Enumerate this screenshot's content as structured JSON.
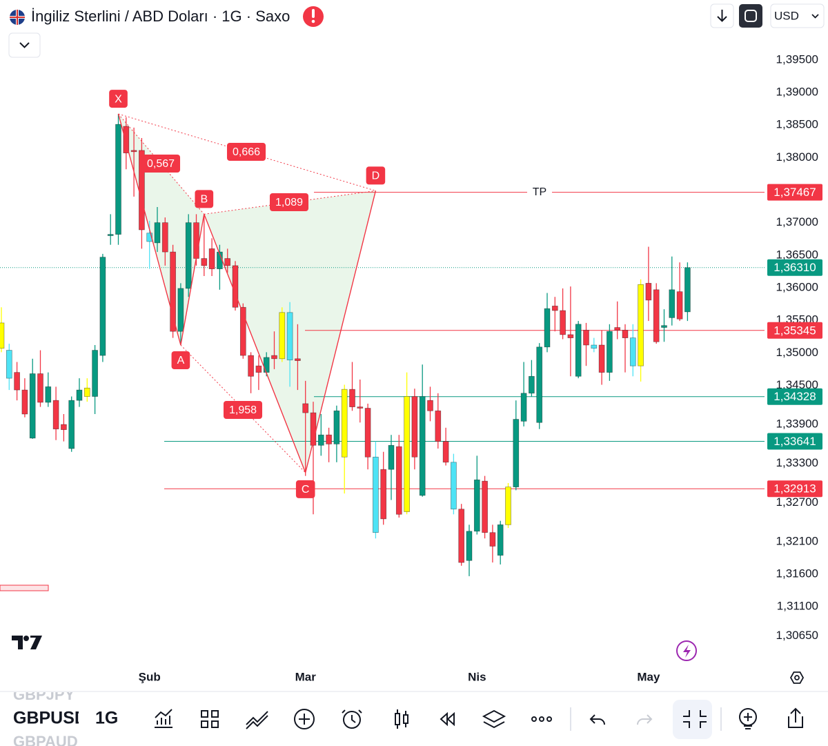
{
  "header": {
    "title": "İngiliz Sterlini / ABD Doları · 1G · Saxo",
    "currency": "USD"
  },
  "toolbar": {
    "symbols": [
      "GBPJPY",
      "GBPUSD",
      "GBPAUD"
    ],
    "interval": "1G"
  },
  "chart_data": {
    "type": "candlestick",
    "categories": [
      null,
      null,
      null,
      null,
      null,
      null,
      null,
      null,
      null,
      null,
      null,
      null,
      null,
      null,
      null,
      null,
      null,
      null,
      null,
      "Şub",
      null,
      null,
      null,
      null,
      null,
      null,
      null,
      null,
      null,
      null,
      null,
      null,
      null,
      null,
      null,
      null,
      null,
      null,
      null,
      "Mar",
      null,
      null,
      null,
      null,
      null,
      null,
      null,
      null,
      null,
      null,
      null,
      null,
      null,
      null,
      null,
      null,
      null,
      null,
      null,
      null,
      null,
      "Nis",
      null,
      null,
      null,
      null,
      null,
      null,
      null,
      null,
      null,
      null,
      null,
      null,
      null,
      null,
      null,
      null,
      null,
      null,
      null,
      null,
      null,
      "May",
      null,
      null,
      null,
      null,
      null
    ],
    "open": [
      1.3507,
      1.3504,
      1.347,
      1.3443,
      1.3369,
      1.3468,
      1.3424,
      1.3427,
      1.339,
      1.3353,
      1.3427,
      1.3433,
      1.3433,
      1.3496,
      1.368,
      1.3682,
      1.3848,
      1.3811,
      1.3811,
      1.3684,
      1.3669,
      1.37,
      1.3655,
      1.3533,
      1.3599,
      1.37,
      1.3645,
      1.366,
      1.3629,
      1.3645,
      1.3634,
      1.357,
      1.3496,
      1.348,
      1.347,
      1.3496,
      1.3491,
      1.3562,
      1.3491,
      1.3422,
      1.3408,
      1.3358,
      1.3374,
      1.336,
      1.334,
      1.3444,
      1.3417,
      1.3415,
      1.334,
      1.3321,
      1.3321,
      1.3356,
      1.3256,
      1.3433,
      1.3281,
      1.3427,
      1.3411,
      1.3364,
      1.3332,
      1.326,
      1.3181,
      1.3226,
      1.3303,
      1.3224,
      1.3189,
      1.3236,
      1.3294,
      1.3395,
      1.3438,
      1.3393,
      1.3509,
      1.3572,
      1.3565,
      1.3528,
      1.3464,
      1.3535,
      1.3512,
      1.3512,
      1.347,
      1.3539,
      1.3535,
      1.3523,
      1.348,
      1.3607,
      1.3597,
      1.3539,
      1.3554,
      1.3594,
      1.3563
    ],
    "high": [
      1.357,
      1.3514,
      1.3486,
      1.3461,
      1.3491,
      1.3504,
      1.347,
      1.3448,
      1.3406,
      1.3433,
      1.3461,
      1.3461,
      1.3512,
      1.3652,
      1.3713,
      1.3867,
      1.3862,
      1.3846,
      1.383,
      1.3703,
      1.3724,
      1.3708,
      1.3666,
      1.3607,
      1.3713,
      1.3713,
      1.3713,
      1.3676,
      1.3666,
      1.366,
      1.3641,
      1.3576,
      1.3501,
      1.3496,
      1.3501,
      1.3533,
      1.357,
      1.3578,
      1.3544,
      1.3457,
      1.3425,
      1.3406,
      1.3385,
      1.3419,
      1.3451,
      1.3486,
      1.3459,
      1.3422,
      1.3364,
      1.3348,
      1.3374,
      1.3374,
      1.347,
      1.3445,
      1.3482,
      1.3448,
      1.3438,
      1.3385,
      1.3345,
      1.3268,
      1.3236,
      1.3342,
      1.3311,
      1.3236,
      1.3242,
      1.33,
      1.3427,
      1.3486,
      1.3489,
      1.3515,
      1.3592,
      1.3586,
      1.3599,
      1.3602,
      1.3549,
      1.3546,
      1.3523,
      1.3535,
      1.3544,
      1.3579,
      1.3544,
      1.3544,
      1.3613,
      1.3663,
      1.3607,
      1.3567,
      1.3648,
      1.3639,
      1.3639
    ],
    "low": [
      1.3501,
      1.3443,
      1.3427,
      1.3401,
      1.3368,
      1.3417,
      1.3417,
      1.3366,
      1.3364,
      1.3348,
      1.3417,
      1.3425,
      1.3406,
      1.3486,
      1.3666,
      1.3666,
      1.3782,
      1.374,
      1.366,
      1.3629,
      1.3655,
      1.3634,
      1.3523,
      1.3512,
      1.3586,
      1.3634,
      1.3618,
      1.3618,
      1.3597,
      1.3623,
      1.3565,
      1.3491,
      1.3438,
      1.3443,
      1.3464,
      1.3475,
      1.3486,
      1.3448,
      1.3443,
      1.3311,
      1.3252,
      1.3342,
      1.3332,
      1.3332,
      1.3284,
      1.3411,
      1.3393,
      1.3321,
      1.3215,
      1.3236,
      1.3274,
      1.3247,
      1.3252,
      1.3321,
      1.3279,
      1.3395,
      1.3353,
      1.3327,
      1.3252,
      1.3173,
      1.3157,
      1.3221,
      1.3215,
      1.3178,
      1.3175,
      1.3231,
      1.3289,
      1.3387,
      1.3433,
      1.3383,
      1.3501,
      1.3533,
      1.3521,
      1.3464,
      1.3461,
      1.348,
      1.3501,
      1.3451,
      1.3457,
      1.3521,
      1.347,
      1.3464,
      1.3456,
      1.3549,
      1.3514,
      1.3517,
      1.3542,
      1.3549,
      1.3549
    ],
    "close": [
      1.3546,
      1.3461,
      1.3443,
      1.3406,
      1.3468,
      1.3424,
      1.3448,
      1.3383,
      1.3382,
      1.3427,
      1.3443,
      1.3446,
      1.3504,
      1.3647,
      1.3682,
      1.3851,
      1.3807,
      1.3809,
      1.3689,
      1.3671,
      1.37,
      1.3655,
      1.3533,
      1.3599,
      1.37,
      1.3645,
      1.3634,
      1.3629,
      1.3655,
      1.3634,
      1.357,
      1.3496,
      1.3464,
      1.347,
      1.3493,
      1.3491,
      1.3562,
      1.3489,
      1.3488,
      1.3408,
      1.3358,
      1.3374,
      1.336,
      1.3411,
      1.3444,
      1.3417,
      1.3415,
      1.334,
      1.3224,
      1.3245,
      1.3358,
      1.3252,
      1.3433,
      1.334,
      1.3433,
      1.3411,
      1.3364,
      1.3332,
      1.326,
      1.3178,
      1.3226,
      1.3305,
      1.3224,
      1.3203,
      1.3236,
      1.3294,
      1.3398,
      1.3438,
      1.3464,
      1.3509,
      1.3568,
      1.3565,
      1.3528,
      1.3523,
      1.3544,
      1.3512,
      1.3507,
      1.347,
      1.3533,
      1.3535,
      1.3523,
      1.348,
      1.3605,
      1.3581,
      1.3517,
      1.3542,
      1.3597,
      1.3552,
      1.3631
    ],
    "colors": [
      "#ffff00",
      "#4ee3f5",
      "#f23645",
      "#f23645",
      "#089981",
      "#f23645",
      "#089981",
      "#f23645",
      "#f23645",
      "#089981",
      "#089981",
      "#ffff00",
      "#089981",
      "#089981",
      "#089981",
      "#089981",
      "#f23645",
      "#f23645",
      "#f23645",
      "#4ee3f5",
      "#089981",
      "#f23645",
      "#f23645",
      "#089981",
      "#089981",
      "#f23645",
      "#f23645",
      "#f23645",
      "#089981",
      "#f23645",
      "#f23645",
      "#f23645",
      "#f23645",
      "#f23645",
      "#089981",
      "#f23645",
      "#ffff00",
      "#4ee3f5",
      "#f23645",
      "#f23645",
      "#f23645",
      "#089981",
      "#f23645",
      "#089981",
      "#ffff00",
      "#f23645",
      "#f23645",
      "#f23645",
      "#4ee3f5",
      "#f23645",
      "#089981",
      "#f23645",
      "#ffff00",
      "#f23645",
      "#089981",
      "#f23645",
      "#f23645",
      "#f23645",
      "#4ee3f5",
      "#f23645",
      "#089981",
      "#089981",
      "#f23645",
      "#f23645",
      "#089981",
      "#ffff00",
      "#089981",
      "#089981",
      "#089981",
      "#089981",
      "#089981",
      "#f23645",
      "#f23645",
      "#f23645",
      "#089981",
      "#f23645",
      "#4ee3f5",
      "#f23645",
      "#089981",
      "#f23645",
      "#f23645",
      "#4ee3f5",
      "#ffff00",
      "#f23645",
      "#f23645",
      "#089981",
      "#089981",
      "#f23645",
      "#089981"
    ],
    "ylim": [
      1.30244,
      1.4042
    ],
    "yticks": [
      {
        "value": 1.395,
        "label": "1,39500"
      },
      {
        "value": 1.39,
        "label": "1,39000"
      },
      {
        "value": 1.385,
        "label": "1,38500"
      },
      {
        "value": 1.38,
        "label": "1,38000"
      },
      {
        "value": 1.37,
        "label": "1,37000"
      },
      {
        "value": 1.365,
        "label": "1,36500"
      },
      {
        "value": 1.36,
        "label": "1,36000"
      },
      {
        "value": 1.355,
        "label": "1,35500"
      },
      {
        "value": 1.35,
        "label": "1,35000"
      },
      {
        "value": 1.345,
        "label": "1,34500"
      },
      {
        "value": 1.339,
        "label": "1,33900"
      },
      {
        "value": 1.333,
        "label": "1,33300"
      },
      {
        "value": 1.327,
        "label": "1,32700"
      },
      {
        "value": 1.321,
        "label": "1,32100"
      },
      {
        "value": 1.316,
        "label": "1,31600"
      },
      {
        "value": 1.311,
        "label": "1,31100"
      },
      {
        "value": 1.3065,
        "label": "1,30650"
      }
    ],
    "levels": [
      {
        "value": 1.37467,
        "label": "1,37467",
        "color": "#f23645",
        "text": "TP"
      },
      {
        "value": 1.3631,
        "label": "1,36310",
        "color": "#089981",
        "style": "dotted"
      },
      {
        "value": 1.35345,
        "label": "1,35345",
        "color": "#f23645"
      },
      {
        "value": 1.34328,
        "label": "1,34328",
        "color": "#089981"
      },
      {
        "value": 1.33641,
        "label": "1,33641",
        "color": "#089981"
      },
      {
        "value": 1.32913,
        "label": "1,32913",
        "color": "#f23645"
      }
    ],
    "pattern": {
      "points": [
        {
          "label": "X",
          "x": 15,
          "value": 1.3867
        },
        {
          "label": "A",
          "x": 23,
          "value": 1.3512
        },
        {
          "label": "B",
          "x": 26,
          "value": 1.3713
        },
        {
          "label": "C",
          "x": 39,
          "value": 1.3316
        },
        {
          "label": "D",
          "x": 48,
          "value": 1.3749
        }
      ],
      "ratios": [
        {
          "value": 0.567,
          "label": "0,567"
        },
        {
          "value": 0.666,
          "label": "0,666"
        },
        {
          "value": 1.089,
          "label": "1,089"
        },
        {
          "value": 1.958,
          "label": "1,958"
        }
      ],
      "color": "#f23645",
      "fill": "#eaf6ea"
    }
  }
}
